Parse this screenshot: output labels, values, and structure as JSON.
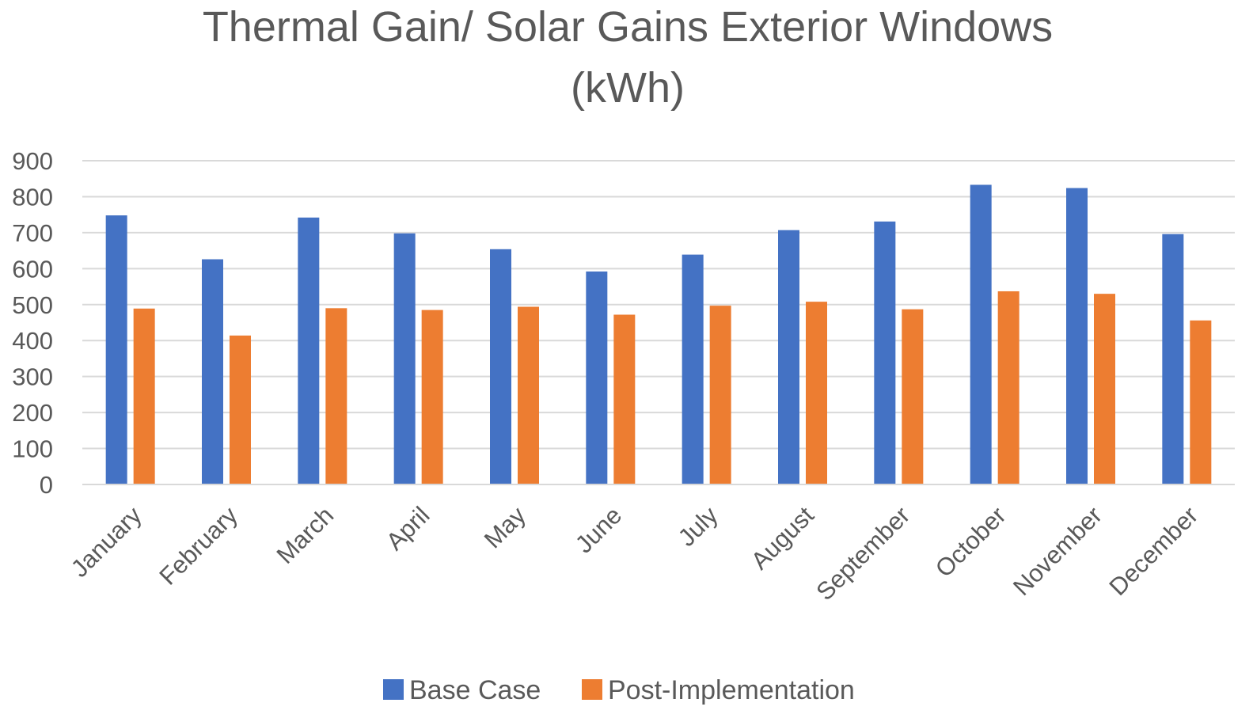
{
  "chart_data": {
    "type": "bar",
    "title_lines": [
      "Thermal Gain/ Solar Gains Exterior Windows",
      "(kWh)"
    ],
    "xlabel": "",
    "ylabel": "",
    "ylim": [
      0,
      900
    ],
    "yticks": [
      0,
      100,
      200,
      300,
      400,
      500,
      600,
      700,
      800,
      900
    ],
    "grid": true,
    "legend_position": "bottom",
    "categories": [
      "January",
      "February",
      "March",
      "April",
      "May",
      "June",
      "July",
      "August",
      "September",
      "October",
      "November",
      "December"
    ],
    "series": [
      {
        "name": "Base Case",
        "color": "#4472c4",
        "values": [
          748,
          626,
          742,
          698,
          654,
          592,
          639,
          707,
          731,
          833,
          824,
          696
        ]
      },
      {
        "name": "Post-Implementation",
        "color": "#ed7d31",
        "values": [
          489,
          414,
          490,
          485,
          494,
          472,
          497,
          508,
          487,
          537,
          530,
          456
        ]
      }
    ]
  }
}
